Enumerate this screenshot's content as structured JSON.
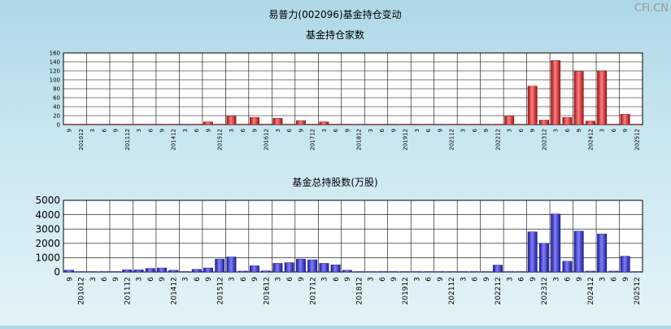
{
  "page_title": "易普力(002096)基金持仓变动",
  "watermark": "CFi.CN",
  "colors": {
    "red_bar": "#e03030",
    "red_bar_dark": "#a01010",
    "blue_bar": "#3b3be0",
    "blue_bar_dark": "#1a1a90",
    "plot_bg": "#ffffff",
    "grid": "#000000"
  },
  "chart_data": [
    {
      "type": "bar",
      "title": "基金持仓家数",
      "ylim": [
        0,
        160
      ],
      "yticks": [
        0,
        20,
        40,
        60,
        80,
        100,
        120,
        140,
        160
      ],
      "grid": true,
      "categories": [
        "9",
        "201012",
        "3",
        "6",
        "9",
        "201112",
        "3",
        "6",
        "9",
        "201412",
        "3",
        "6",
        "9",
        "201512",
        "3",
        "6",
        "9",
        "201612",
        "3",
        "6",
        "9",
        "201712",
        "3",
        "6",
        "9",
        "201812",
        "3",
        "6",
        "9",
        "201912",
        "3",
        "6",
        "9",
        "202112",
        "3",
        "6",
        "9",
        "202212",
        "3",
        "6",
        "9",
        "202312",
        "3",
        "6",
        "9",
        "202412",
        "3",
        "6",
        "9",
        "202512"
      ],
      "values": [
        1,
        1,
        1,
        1,
        1,
        1,
        1,
        1,
        1,
        1,
        1,
        1,
        6,
        1,
        19,
        1,
        16,
        1,
        14,
        1,
        9,
        1,
        6,
        1,
        1,
        1,
        1,
        1,
        1,
        1,
        1,
        1,
        1,
        1,
        1,
        1,
        1,
        1,
        19,
        1,
        86,
        10,
        143,
        16,
        119,
        8,
        120,
        1,
        23,
        1
      ]
    },
    {
      "type": "bar",
      "title": "基金总持股数(万股)",
      "ylim": [
        0,
        5000
      ],
      "yticks": [
        0,
        1000,
        2000,
        3000,
        4000,
        5000
      ],
      "grid": true,
      "categories": [
        "9",
        "201012",
        "3",
        "6",
        "9",
        "201112",
        "3",
        "6",
        "9",
        "201412",
        "3",
        "6",
        "9",
        "201512",
        "3",
        "6",
        "9",
        "201612",
        "3",
        "6",
        "9",
        "201712",
        "3",
        "6",
        "9",
        "201812",
        "3",
        "6",
        "9",
        "201912",
        "3",
        "6",
        "9",
        "202112",
        "3",
        "6",
        "9",
        "202212",
        "3",
        "6",
        "9",
        "202312",
        "3",
        "6",
        "9",
        "202412",
        "3",
        "6",
        "9",
        "202512"
      ],
      "values": [
        130,
        30,
        30,
        30,
        30,
        150,
        150,
        250,
        280,
        120,
        30,
        180,
        280,
        900,
        1050,
        60,
        430,
        80,
        600,
        650,
        900,
        850,
        600,
        500,
        120,
        30,
        30,
        30,
        30,
        30,
        30,
        30,
        30,
        30,
        30,
        30,
        30,
        480,
        30,
        30,
        2800,
        2000,
        4050,
        750,
        2850,
        60,
        2650,
        60,
        1100,
        30
      ]
    }
  ]
}
